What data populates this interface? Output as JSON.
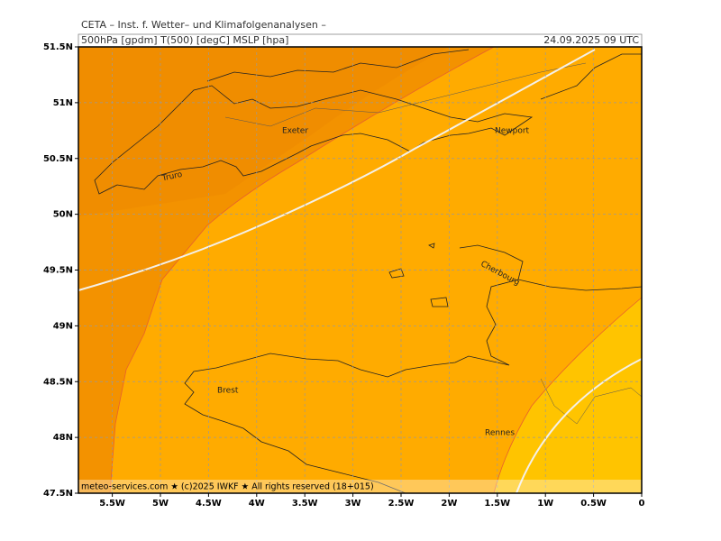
{
  "header": {
    "title": "CETA – Inst. f. Wetter– und Klimafolgenanalysen –",
    "fields": "500hPa [gpdm] T(500) [degC] MSLP [hpa]",
    "time": "24.09.2025 09 UTC"
  },
  "axes": {
    "y_labels": [
      "51.5N",
      "51N",
      "50.5N",
      "50N",
      "49.5N",
      "49N",
      "48.5N",
      "48N",
      "47.5N"
    ],
    "x_labels": [
      "5.5W",
      "5W",
      "4.5W",
      "4W",
      "3.5W",
      "3W",
      "2.5W",
      "2W",
      "1.5W",
      "1W",
      "0.5W",
      "0"
    ]
  },
  "places": [
    "Exeter",
    "Truro",
    "Newport",
    "Cherbourg",
    "Brest",
    "Rennes"
  ],
  "footer": "meteo-services.com ★ (c)2025 IWKF ★ All rights reserved (18+015)"
}
